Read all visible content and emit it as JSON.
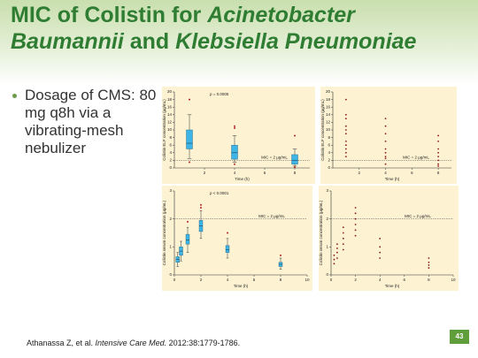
{
  "title": [
    [
      {
        "text": "MIC of Colistin for ",
        "italic": false
      },
      {
        "text": "Acinetobacter",
        "italic": true
      }
    ],
    [
      {
        "text": "Baumannii",
        "italic": true
      },
      {
        "text": " and ",
        "italic": false
      },
      {
        "text": "Klebsiella Pneumoniae",
        "italic": true
      }
    ]
  ],
  "bullets": [
    "Dosage of CMS: 80 mg q8h via a vibrating-mesh nebulizer"
  ],
  "citation": [
    {
      "text": "Athanassa Z, et al. ",
      "italic": false
    },
    {
      "text": "Intensive Care Med.",
      "italic": true
    },
    {
      "text": " 2012:38:1779-1786.",
      "italic": false
    }
  ],
  "page_number": "43",
  "chart_data": [
    {
      "type": "box",
      "ylabel": "Colistin ELF concentration (µg/mL)",
      "xlabel": "Time (h)",
      "annotation": "p = 0.0005",
      "mic_value": 2,
      "mic_label": "MIC = 2 µg/mL",
      "xlim": [
        0,
        9
      ],
      "xticks": [
        2,
        4,
        6,
        8
      ],
      "ylim": [
        0,
        20
      ],
      "yticks": [
        0,
        2,
        4,
        6,
        8,
        10,
        12,
        14,
        16,
        18,
        20
      ],
      "box_color": "#3db5e6",
      "outlier_color": "#b22222",
      "boxes": {
        "x": [
          1,
          4,
          8
        ],
        "min": [
          2.5,
          1.5,
          0.5
        ],
        "q1": [
          5,
          2.3,
          1
        ],
        "median": [
          6.5,
          4,
          2
        ],
        "q3": [
          10,
          6,
          3.5
        ],
        "max": [
          14,
          8.5,
          5
        ]
      },
      "outliers": {
        "x": [
          1,
          1,
          4,
          4,
          4,
          8,
          8
        ],
        "values": [
          18,
          1.5,
          11,
          10.5,
          1,
          8.5,
          0.2
        ]
      }
    },
    {
      "type": "scatter",
      "ylabel": "Colistin ELF concentration (µg/mL)",
      "xlabel": "Time (h)",
      "mic_value": 2,
      "mic_label": "MIC = 2 µg/mL",
      "xlim": [
        0,
        9
      ],
      "xticks": [
        2,
        4,
        6,
        8
      ],
      "ylim": [
        0,
        20
      ],
      "yticks": [
        0,
        2,
        4,
        6,
        8,
        10,
        12,
        14,
        16,
        18,
        20
      ],
      "color": "#8b1a1a",
      "points": {
        "x": [
          1,
          1,
          1,
          1,
          1,
          1,
          1,
          1,
          1,
          1,
          1,
          4,
          4,
          4,
          4,
          4,
          4,
          4,
          4,
          4,
          8,
          8,
          8,
          8,
          8,
          8,
          8,
          8
        ],
        "values": [
          18,
          14,
          13,
          11,
          10,
          9,
          7,
          6,
          5,
          4,
          3,
          13,
          11,
          9,
          7,
          5,
          4,
          3,
          2.5,
          1,
          8.5,
          7,
          5,
          4,
          3,
          2,
          1,
          0.5
        ]
      }
    },
    {
      "type": "box",
      "ylabel": "Colistin serum concentration (µg/mL)",
      "xlabel": "Time (h)",
      "annotation": "p < 0.0001",
      "mic_value": 2,
      "mic_label": "MIC = 2 µg/mL",
      "xlim": [
        0,
        10
      ],
      "xticks": [
        0,
        2,
        4,
        6,
        8,
        10
      ],
      "ylim": [
        0,
        3
      ],
      "yticks": [
        0,
        1,
        2,
        3
      ],
      "box_color": "#3db5e6",
      "outlier_color": "#b22222",
      "boxes": {
        "x": [
          0.25,
          0.5,
          1,
          2,
          4,
          8
        ],
        "min": [
          0.3,
          0.5,
          0.8,
          1.3,
          0.6,
          0.2
        ],
        "q1": [
          0.45,
          0.7,
          1.1,
          1.55,
          0.8,
          0.3
        ],
        "median": [
          0.55,
          0.85,
          1.25,
          1.75,
          0.9,
          0.38
        ],
        "q3": [
          0.65,
          1.0,
          1.45,
          1.95,
          1.05,
          0.45
        ],
        "max": [
          0.8,
          1.2,
          1.7,
          2.3,
          1.3,
          0.6
        ]
      },
      "outliers": {
        "x": [
          1,
          2,
          2,
          4,
          8
        ],
        "values": [
          1.9,
          2.5,
          2.4,
          1.5,
          0.7
        ]
      }
    },
    {
      "type": "scatter",
      "ylabel": "Colistin serum concentration (µg/mL)",
      "xlabel": "Time (h)",
      "mic_value": 2,
      "mic_label": "MIC = 2 µg/mL",
      "xlim": [
        0,
        10
      ],
      "xticks": [
        0,
        2,
        4,
        6,
        8,
        10
      ],
      "ylim": [
        0,
        3
      ],
      "yticks": [
        0,
        1,
        2,
        3
      ],
      "color": "#8b1a1a",
      "points": {
        "x": [
          0.25,
          0.25,
          0.25,
          0.5,
          0.5,
          0.5,
          0.5,
          1,
          1,
          1,
          1,
          1,
          2,
          2,
          2,
          2,
          2,
          2,
          4,
          4,
          4,
          4,
          8,
          8,
          8,
          8
        ],
        "values": [
          0.4,
          0.55,
          0.7,
          0.6,
          0.8,
          0.95,
          1.1,
          0.9,
          1.1,
          1.3,
          1.5,
          1.7,
          1.4,
          1.6,
          1.8,
          2.0,
          2.2,
          2.4,
          0.6,
          0.8,
          1.0,
          1.3,
          0.25,
          0.35,
          0.45,
          0.6
        ]
      }
    }
  ]
}
